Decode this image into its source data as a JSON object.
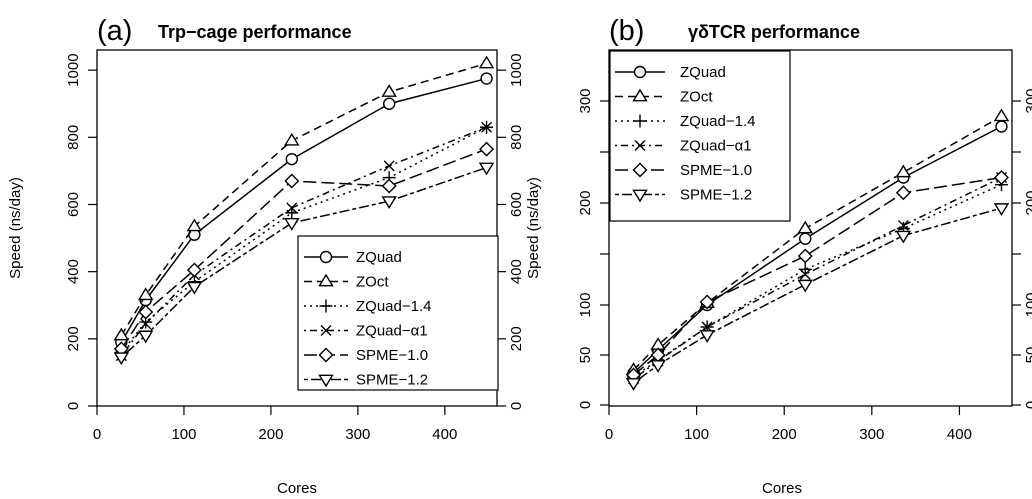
{
  "chart_data": [
    {
      "type": "line",
      "panel_label": "(a)",
      "title": "Trp−cage performance",
      "xlabel": "Cores",
      "ylabel": "Speed (ns/day)",
      "xlim": [
        0,
        460
      ],
      "ylim": [
        0,
        1060
      ],
      "xticks": [
        0,
        100,
        200,
        300,
        400
      ],
      "xtick_labels": [
        "0",
        "100",
        "200",
        "300",
        "400"
      ],
      "yticks": [
        0,
        200,
        400,
        600,
        800,
        1000
      ],
      "ytick_labels": [
        "0",
        "200",
        "400",
        "600",
        "800",
        "1000"
      ],
      "legend_position": "bottom-right",
      "x": [
        28,
        56,
        112,
        224,
        336,
        448
      ],
      "series": [
        {
          "name": "ZQuad",
          "linestyle": "solid",
          "marker": "circle",
          "values": [
            190,
            315,
            510,
            735,
            900,
            975
          ]
        },
        {
          "name": "ZOct",
          "linestyle": "dashed",
          "marker": "triangle-up",
          "values": [
            210,
            330,
            535,
            790,
            935,
            1020
          ]
        },
        {
          "name": "ZQuad−1.4",
          "linestyle": "dotted",
          "marker": "plus",
          "values": [
            160,
            250,
            370,
            575,
            680,
            830
          ]
        },
        {
          "name": "ZQuad−α1",
          "linestyle": "dotdash",
          "marker": "cross",
          "values": [
            150,
            245,
            390,
            590,
            715,
            830
          ]
        },
        {
          "name": "SPME−1.0",
          "linestyle": "longdash",
          "marker": "diamond",
          "values": [
            170,
            280,
            405,
            670,
            655,
            765
          ]
        },
        {
          "name": "SPME−1.2",
          "linestyle": "twodash",
          "marker": "triangle-down",
          "values": [
            145,
            210,
            355,
            545,
            610,
            710
          ]
        }
      ]
    },
    {
      "type": "line",
      "panel_label": "(b)",
      "title": "γδTCR performance",
      "xlabel": "Cores",
      "ylabel": "Speed (ns/day)",
      "xlim": [
        0,
        460
      ],
      "ylim": [
        0,
        350
      ],
      "xticks": [
        0,
        100,
        200,
        300,
        400
      ],
      "xtick_labels": [
        "0",
        "100",
        "200",
        "300",
        "400"
      ],
      "yticks": [
        0,
        50,
        100,
        200,
        300
      ],
      "ytick_labels": [
        "0",
        "50",
        "100",
        "200",
        "300"
      ],
      "legend_position": "top-left",
      "x": [
        28,
        56,
        112,
        224,
        336,
        448
      ],
      "series": [
        {
          "name": "ZQuad",
          "linestyle": "solid",
          "marker": "circle",
          "values": [
            32,
            55,
            100,
            165,
            225,
            275
          ]
        },
        {
          "name": "ZOct",
          "linestyle": "dashed",
          "marker": "triangle-up",
          "values": [
            35,
            60,
            102,
            175,
            230,
            285
          ]
        },
        {
          "name": "ZQuad−1.4",
          "linestyle": "dotted",
          "marker": "plus",
          "values": [
            28,
            45,
            78,
            135,
            175,
            218
          ]
        },
        {
          "name": "ZQuad−α1",
          "linestyle": "dotdash",
          "marker": "cross",
          "values": [
            26,
            44,
            78,
            130,
            178,
            225
          ]
        },
        {
          "name": "SPME−1.0",
          "linestyle": "longdash",
          "marker": "diamond",
          "values": [
            30,
            50,
            103,
            148,
            210,
            225
          ]
        },
        {
          "name": "SPME−1.2",
          "linestyle": "twodash",
          "marker": "triangle-down",
          "values": [
            22,
            40,
            70,
            120,
            168,
            195
          ]
        }
      ]
    }
  ]
}
